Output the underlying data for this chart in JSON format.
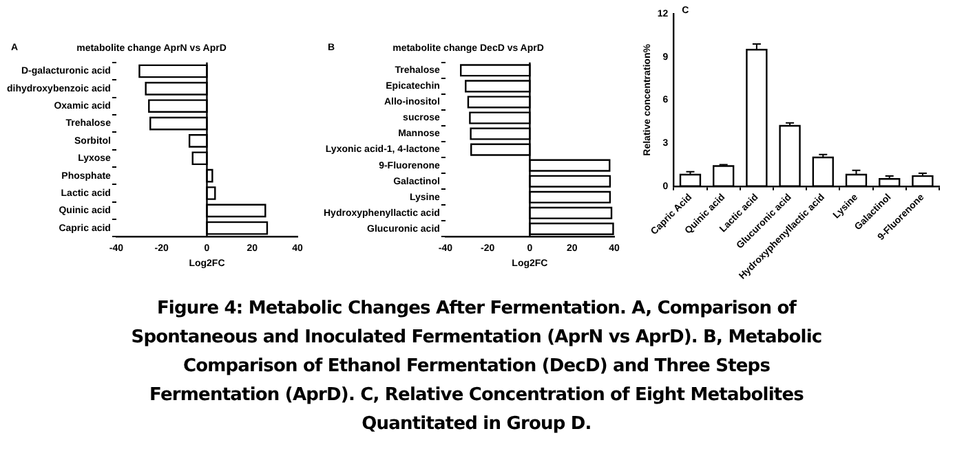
{
  "chart_data": [
    {
      "type": "bar",
      "orientation": "horizontal",
      "title": "metabolite change AprN vs AprD",
      "xlabel": "Log2FC",
      "annotations": [
        "A"
      ],
      "categories": [
        "D-galacturonic acid",
        "dihydroxybenzoic acid",
        "Oxamic acid",
        "Trehalose",
        "Sorbitol",
        "Lyxose",
        "Phosphate",
        "Lactic acid",
        "Quinic acid",
        "Capric acid"
      ],
      "values": [
        -29.8,
        -27,
        -25.6,
        -25,
        -7.7,
        -6.3,
        2.4,
        3.6,
        25.8,
        26.6
      ],
      "color": "#ffffff",
      "ref_lines": [
        {
          "axis": "x",
          "value": 0,
          "color": "#000000"
        }
      ],
      "xlim": [
        -40,
        40
      ],
      "xticks": [
        -40,
        -20,
        0,
        20,
        40
      ],
      "grid": false,
      "legend": false
    },
    {
      "type": "bar",
      "orientation": "horizontal",
      "title": "metabolite change DecD vs AprD",
      "xlabel": "Log2FC",
      "annotations": [
        "B"
      ],
      "categories": [
        "Trehalose",
        "Epicatechin",
        "Allo-inositol",
        "sucrose",
        "Mannose",
        "Lyxonic acid-1, 4-lactone",
        "9-Fluorenone",
        "Galactinol",
        "Lysine",
        "Hydroxyphenyllactic acid",
        "Glucuronic acid"
      ],
      "values": [
        -32.7,
        -30.4,
        -29.2,
        -28.4,
        -28,
        -27.8,
        37.8,
        38,
        38,
        38.7,
        39.5
      ],
      "color": "#ffffff",
      "ref_lines": [
        {
          "axis": "x",
          "value": 0,
          "color": "#000000"
        }
      ],
      "xlim": [
        -40,
        40
      ],
      "xticks": [
        -40,
        -20,
        0,
        20,
        40
      ],
      "grid": false,
      "legend": false
    },
    {
      "type": "bar",
      "ylabel": "Relative concentration%",
      "annotations": [
        "C",
        "Figure 4: Metabolic Changes After Fermentation. A, Comparison of Spontaneous and Inoculated Fermentation (AprN vs AprD). B, Metabolic Comparison of Ethanol Fermentation (DecD) and Three Steps Fermentation (AprD). C, Relative Concentration of Eight Metabolites Quantitated in Group D."
      ],
      "categories": [
        "Capric Acid",
        "Quinic acid",
        "Lactic acid",
        "Glucuronic acid",
        "Hydroxyphenyllactic acid",
        "Lysine",
        "Galactinol",
        "9-Fluorenone"
      ],
      "values": [
        0.8,
        1.4,
        9.5,
        4.2,
        2.0,
        0.8,
        0.5,
        0.7
      ],
      "errors": [
        0.2,
        0.1,
        0.4,
        0.2,
        0.2,
        0.3,
        0.2,
        0.2
      ],
      "color": "#ffffff",
      "ylim": [
        0,
        12
      ],
      "yticks": [
        0,
        3,
        6,
        9,
        12
      ],
      "grid": false,
      "legend": false
    }
  ]
}
